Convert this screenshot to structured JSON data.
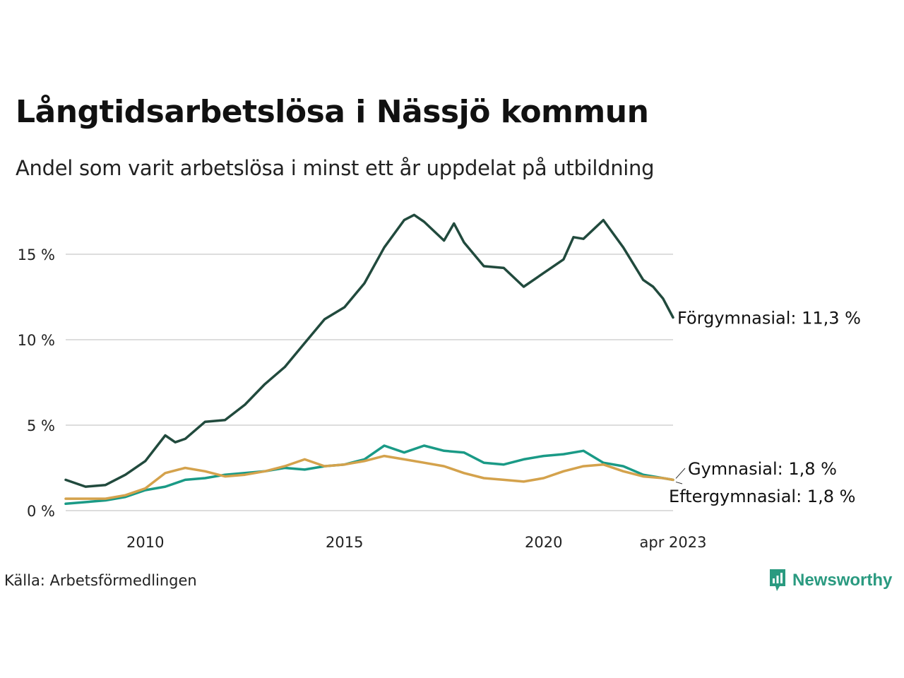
{
  "title": "Långtidsarbetslösa i Nässjö kommun",
  "subtitle": "Andel som varit arbetslösa i minst ett år uppdelat på utbildning",
  "source": "Källa: Arbetsförmedlingen",
  "brand": {
    "name": "Newsworthy",
    "icon": "newsworthy-logo-icon",
    "color": "#2a9a80"
  },
  "chart_data": {
    "type": "line",
    "title": "Långtidsarbetslösa i Nässjö kommun",
    "subtitle": "Andel som varit arbetslösa i minst ett år uppdelat på utbildning",
    "xlabel": "",
    "ylabel": "",
    "x_unit": "date (year-month)",
    "y_unit": "%",
    "xlim": [
      "2008-01",
      "2023-04"
    ],
    "ylim": [
      0,
      17.5
    ],
    "grid": "horizontal",
    "y_ticks": [
      {
        "value": 0,
        "label": "0 %"
      },
      {
        "value": 5,
        "label": "5 %"
      },
      {
        "value": 10,
        "label": "10 %"
      },
      {
        "value": 15,
        "label": "15 %"
      }
    ],
    "x_ticks": [
      {
        "value": "2010-01",
        "label": "2010"
      },
      {
        "value": "2015-01",
        "label": "2015"
      },
      {
        "value": "2020-01",
        "label": "2020"
      },
      {
        "value": "2023-04",
        "label": "apr 2023"
      }
    ],
    "legend": "direct end labels",
    "series": [
      {
        "name": "Förgymnasial",
        "end_label": "Förgymnasial: 11,3 %",
        "color": "#214a3d",
        "points": [
          [
            "2008-01",
            1.8
          ],
          [
            "2008-07",
            1.4
          ],
          [
            "2009-01",
            1.5
          ],
          [
            "2009-07",
            2.1
          ],
          [
            "2010-01",
            2.9
          ],
          [
            "2010-07",
            4.4
          ],
          [
            "2010-10",
            4.0
          ],
          [
            "2011-01",
            4.2
          ],
          [
            "2011-07",
            5.2
          ],
          [
            "2012-01",
            5.3
          ],
          [
            "2012-07",
            6.2
          ],
          [
            "2013-01",
            7.4
          ],
          [
            "2013-07",
            8.4
          ],
          [
            "2014-01",
            9.8
          ],
          [
            "2014-07",
            11.2
          ],
          [
            "2015-01",
            11.9
          ],
          [
            "2015-07",
            13.3
          ],
          [
            "2016-01",
            15.4
          ],
          [
            "2016-07",
            17.0
          ],
          [
            "2016-10",
            17.3
          ],
          [
            "2017-01",
            16.9
          ],
          [
            "2017-07",
            15.8
          ],
          [
            "2017-10",
            16.8
          ],
          [
            "2018-01",
            15.7
          ],
          [
            "2018-07",
            14.3
          ],
          [
            "2019-01",
            14.2
          ],
          [
            "2019-07",
            13.1
          ],
          [
            "2020-01",
            13.9
          ],
          [
            "2020-07",
            14.7
          ],
          [
            "2020-10",
            16.0
          ],
          [
            "2021-01",
            15.9
          ],
          [
            "2021-07",
            17.0
          ],
          [
            "2022-01",
            15.4
          ],
          [
            "2022-07",
            13.5
          ],
          [
            "2022-10",
            13.1
          ],
          [
            "2023-01",
            12.4
          ],
          [
            "2023-04",
            11.3
          ]
        ]
      },
      {
        "name": "Gymnasial",
        "end_label": "Gymnasial:  1,8 %",
        "color": "#1a9a86",
        "points": [
          [
            "2008-01",
            0.4
          ],
          [
            "2009-01",
            0.6
          ],
          [
            "2009-07",
            0.8
          ],
          [
            "2010-01",
            1.2
          ],
          [
            "2010-07",
            1.4
          ],
          [
            "2011-01",
            1.8
          ],
          [
            "2011-07",
            1.9
          ],
          [
            "2012-01",
            2.1
          ],
          [
            "2012-07",
            2.2
          ],
          [
            "2013-01",
            2.3
          ],
          [
            "2013-07",
            2.5
          ],
          [
            "2014-01",
            2.4
          ],
          [
            "2014-07",
            2.6
          ],
          [
            "2015-01",
            2.7
          ],
          [
            "2015-07",
            3.0
          ],
          [
            "2016-01",
            3.8
          ],
          [
            "2016-07",
            3.4
          ],
          [
            "2017-01",
            3.8
          ],
          [
            "2017-07",
            3.5
          ],
          [
            "2018-01",
            3.4
          ],
          [
            "2018-07",
            2.8
          ],
          [
            "2019-01",
            2.7
          ],
          [
            "2019-07",
            3.0
          ],
          [
            "2020-01",
            3.2
          ],
          [
            "2020-07",
            3.3
          ],
          [
            "2021-01",
            3.5
          ],
          [
            "2021-07",
            2.8
          ],
          [
            "2022-01",
            2.6
          ],
          [
            "2022-07",
            2.1
          ],
          [
            "2023-01",
            1.9
          ],
          [
            "2023-04",
            1.8
          ]
        ]
      },
      {
        "name": "Eftergymnasial",
        "end_label": "Eftergymnasial:  1,8 %",
        "color": "#d4a24c",
        "points": [
          [
            "2008-01",
            0.7
          ],
          [
            "2009-01",
            0.7
          ],
          [
            "2009-07",
            0.9
          ],
          [
            "2010-01",
            1.3
          ],
          [
            "2010-07",
            2.2
          ],
          [
            "2011-01",
            2.5
          ],
          [
            "2011-07",
            2.3
          ],
          [
            "2012-01",
            2.0
          ],
          [
            "2012-07",
            2.1
          ],
          [
            "2013-01",
            2.3
          ],
          [
            "2013-07",
            2.6
          ],
          [
            "2014-01",
            3.0
          ],
          [
            "2014-07",
            2.6
          ],
          [
            "2015-01",
            2.7
          ],
          [
            "2015-07",
            2.9
          ],
          [
            "2016-01",
            3.2
          ],
          [
            "2016-07",
            3.0
          ],
          [
            "2017-01",
            2.8
          ],
          [
            "2017-07",
            2.6
          ],
          [
            "2018-01",
            2.2
          ],
          [
            "2018-07",
            1.9
          ],
          [
            "2019-01",
            1.8
          ],
          [
            "2019-07",
            1.7
          ],
          [
            "2020-01",
            1.9
          ],
          [
            "2020-07",
            2.3
          ],
          [
            "2021-01",
            2.6
          ],
          [
            "2021-07",
            2.7
          ],
          [
            "2022-01",
            2.3
          ],
          [
            "2022-07",
            2.0
          ],
          [
            "2023-01",
            1.9
          ],
          [
            "2023-04",
            1.8
          ]
        ]
      }
    ]
  }
}
